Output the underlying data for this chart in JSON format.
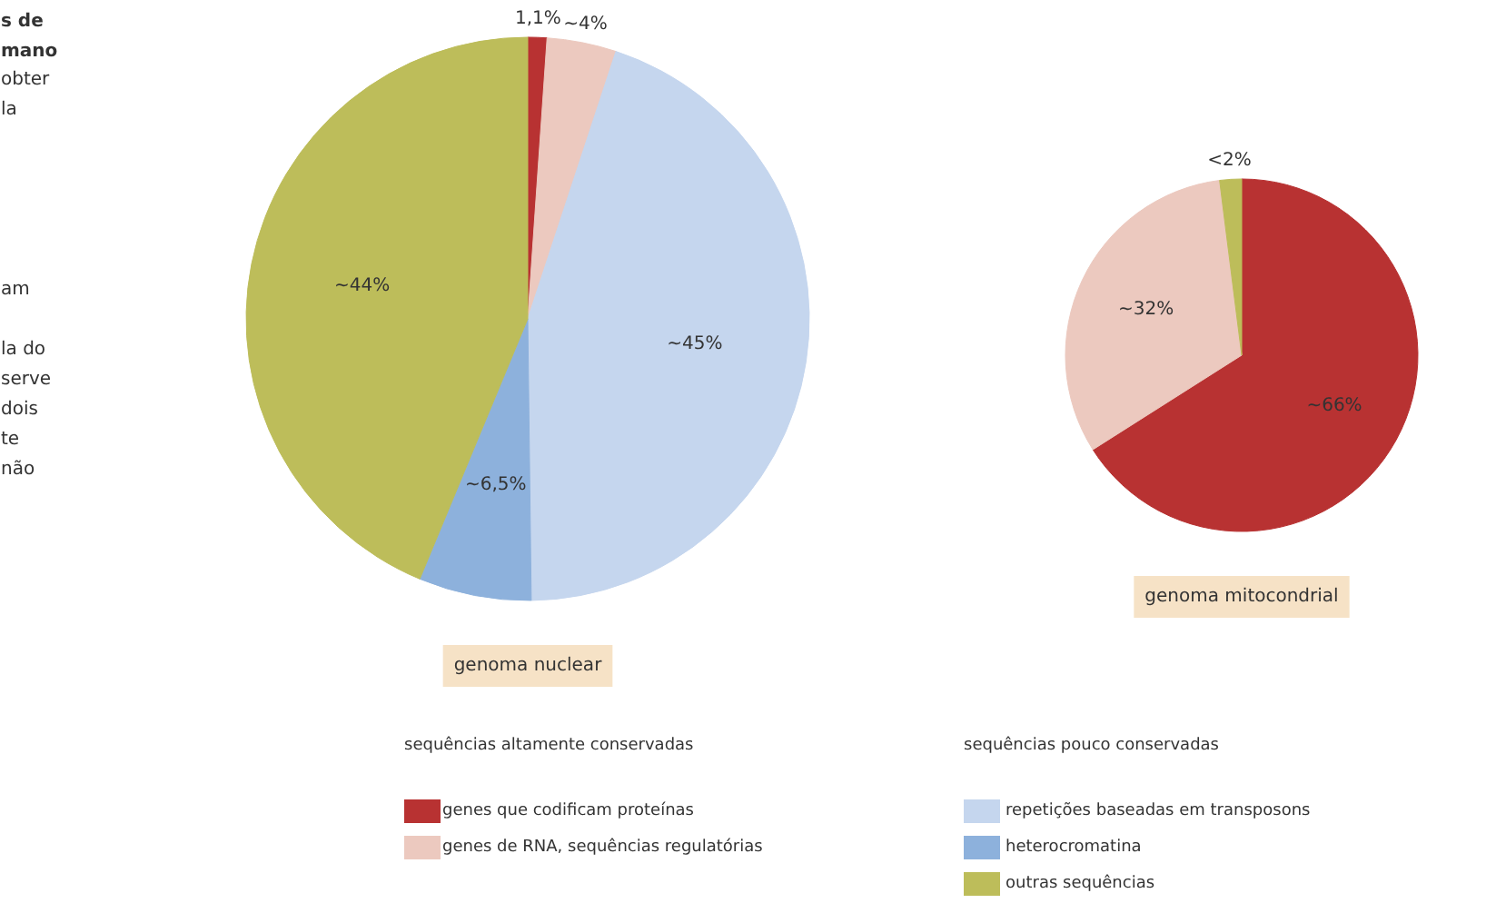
{
  "chart_data": [
    {
      "type": "pie",
      "title": "genoma nuclear",
      "categories": [
        "genes que codificam proteínas",
        "genes de RNA, sequências regulatórias",
        "repetições baseadas em transposons",
        "heterocromatina",
        "outras sequências"
      ],
      "values": [
        1.1,
        4,
        45,
        6.5,
        44
      ],
      "colors": [
        "#b83232",
        "#ecc9bf",
        "#c5d6ee",
        "#8db1dc",
        "#bdbd5a"
      ],
      "value_labels": [
        "1,1%",
        "~4%",
        "~45%",
        "~6,5%",
        "~44%"
      ],
      "legend": "bottom",
      "annotations": [
        "s de\nmano",
        "obter\nla\n\n\n\n\n\nam\n\nla do\nserve\ndois\nte\nnão",
        "sequências altamente conservadas",
        "sequências pouco conservadas"
      ]
    },
    {
      "type": "pie",
      "title": "genoma mitocondrial",
      "categories": [
        null,
        null,
        null
      ],
      "values": [
        66,
        32,
        2
      ],
      "colors": [
        "#b83232",
        "#ecc9bf",
        "#bdbd5a"
      ],
      "value_labels": [
        "~66%",
        "~32%",
        "<2%"
      ]
    }
  ]
}
